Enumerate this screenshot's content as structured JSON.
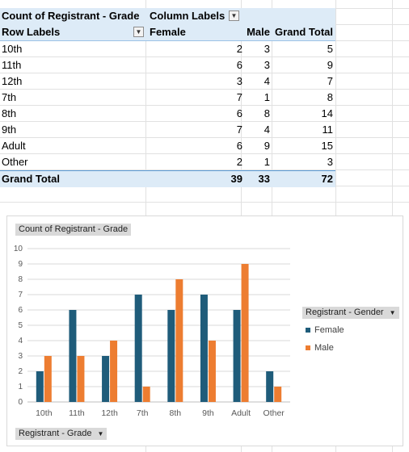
{
  "pivot": {
    "header": {
      "values_label": "Count of Registrant - Grade",
      "columns_label": "Column Labels"
    },
    "colhead": {
      "rows_label": "Row Labels",
      "cols": [
        "Female",
        "Male",
        "Grand Total"
      ]
    },
    "rows": [
      {
        "label": "10th",
        "female": "2",
        "male": "3",
        "total": "5"
      },
      {
        "label": "11th",
        "female": "6",
        "male": "3",
        "total": "9"
      },
      {
        "label": "12th",
        "female": "3",
        "male": "4",
        "total": "7"
      },
      {
        "label": "7th",
        "female": "7",
        "male": "1",
        "total": "8"
      },
      {
        "label": "8th",
        "female": "6",
        "male": "8",
        "total": "14"
      },
      {
        "label": "9th",
        "female": "7",
        "male": "4",
        "total": "11"
      },
      {
        "label": "Adult",
        "female": "6",
        "male": "9",
        "total": "15"
      },
      {
        "label": "Other",
        "female": "2",
        "male": "1",
        "total": "3"
      }
    ],
    "grand": {
      "label": "Grand Total",
      "female": "39",
      "male": "33",
      "total": "72"
    }
  },
  "chart_buttons": {
    "values_field": "Count of Registrant - Grade",
    "legend_field": "Registrant - Gender",
    "axis_field": "Registrant - Grade",
    "dropdown_glyph": "▼"
  },
  "chart_data": {
    "type": "bar",
    "categories": [
      "10th",
      "11th",
      "12th",
      "7th",
      "8th",
      "9th",
      "Adult",
      "Other"
    ],
    "series": [
      {
        "name": "Female",
        "values": [
          2,
          6,
          3,
          7,
          6,
          7,
          6,
          2
        ],
        "color": "#1f5c7a"
      },
      {
        "name": "Male",
        "values": [
          3,
          3,
          4,
          1,
          8,
          4,
          9,
          1
        ],
        "color": "#ed7d31"
      }
    ],
    "ylim": [
      0,
      10
    ],
    "yticks": [
      0,
      1,
      2,
      3,
      4,
      5,
      6,
      7,
      8,
      9,
      10
    ],
    "grid": true,
    "legend_position": "right"
  }
}
